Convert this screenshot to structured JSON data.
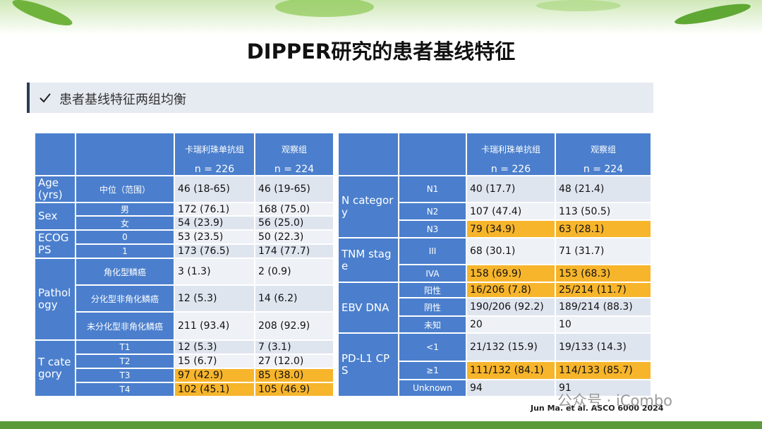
{
  "title": "DIPPER研究的患者基线特征",
  "subtitle": "患者基线特征两组均衡",
  "left_table": {
    "arms": [
      {
        "name": "卡瑞利珠单抗组",
        "n": "n = 226"
      },
      {
        "name": "观察组",
        "n": "n = 224"
      }
    ],
    "groups": [
      {
        "label": "Age (yrs)",
        "rows": [
          {
            "sub": "中位（范围）",
            "a": "46 (18-65)",
            "b": "46 (19-65)",
            "highlight": false
          }
        ]
      },
      {
        "label": "Sex",
        "rows": [
          {
            "sub": "男",
            "a": "172 (76.1)",
            "b": "168 (75.0)",
            "highlight": false
          },
          {
            "sub": "女",
            "a": "54 (23.9)",
            "b": "56 (25.0)",
            "highlight": false
          }
        ]
      },
      {
        "label": "ECOG PS",
        "rows": [
          {
            "sub": "0",
            "a": "53 (23.5)",
            "b": "50 (22.3)",
            "highlight": false
          },
          {
            "sub": "1",
            "a": "173 (76.5)",
            "b": "174 (77.7)",
            "highlight": false
          }
        ]
      },
      {
        "label": "Pathology",
        "rows": [
          {
            "sub": "角化型鳞癌",
            "a": "3 (1.3)",
            "b": "2 (0.9)",
            "highlight": false
          },
          {
            "sub": "分化型非角化鳞癌",
            "a": "12 (5.3)",
            "b": "14 (6.2)",
            "highlight": false
          },
          {
            "sub": "未分化型非角化鳞癌",
            "a": "211 (93.4)",
            "b": "208 (92.9)",
            "highlight": false
          }
        ]
      },
      {
        "label": "T category",
        "rows": [
          {
            "sub": "T1",
            "a": "12 (5.3)",
            "b": "7 (3.1)",
            "highlight": false
          },
          {
            "sub": "T2",
            "a": "15 (6.7)",
            "b": "27 (12.0)",
            "highlight": false
          },
          {
            "sub": "T3",
            "a": "97 (42.9)",
            "b": "85 (38.0)",
            "highlight": true
          },
          {
            "sub": "T4",
            "a": "102 (45.1)",
            "b": "105 (46.9)",
            "highlight": true
          }
        ]
      }
    ]
  },
  "right_table": {
    "arms": [
      {
        "name": "卡瑞利珠单抗组",
        "n": "n = 226"
      },
      {
        "name": "观察组",
        "n": "n = 224"
      }
    ],
    "groups": [
      {
        "label": "N category",
        "rows": [
          {
            "sub": "N1",
            "a": "40 (17.7)",
            "b": "48 (21.4)",
            "highlight": false
          },
          {
            "sub": "N2",
            "a": "107 (47.4)",
            "b": "113 (50.5)",
            "highlight": false
          },
          {
            "sub": "N3",
            "a": "79 (34.9)",
            "b": "63 (28.1)",
            "highlight": true
          }
        ]
      },
      {
        "label": "TNM stage",
        "rows": [
          {
            "sub": "III",
            "a": "68 (30.1)",
            "b": "71 (31.7)",
            "highlight": false
          },
          {
            "sub": "IVA",
            "a": "158 (69.9)",
            "b": "153 (68.3)",
            "highlight": true
          }
        ]
      },
      {
        "label": "EBV DNA",
        "rows": [
          {
            "sub": "阳性",
            "a": "16/206 (7.8)",
            "b": "25/214 (11.7)",
            "highlight": true
          },
          {
            "sub": "阴性",
            "a": "190/206 (92.2)",
            "b": "189/214 (88.3)",
            "highlight": false
          },
          {
            "sub": "未知",
            "a": "20",
            "b": "10",
            "highlight": false
          }
        ]
      },
      {
        "label": "PD-L1 CPS",
        "rows": [
          {
            "sub": "<1",
            "a": "21/132 (15.9)",
            "b": "19/133 (14.3)",
            "highlight": false
          },
          {
            "sub": "≥1",
            "a": "111/132 (84.1)",
            "b": "114/133 (85.7)",
            "highlight": true
          },
          {
            "sub": "Unknown",
            "a": "94",
            "b": "91",
            "highlight": false
          }
        ]
      }
    ]
  },
  "footnote": "Jun Ma. et al. ASCO 6000 2024",
  "watermark": "公众号 · iCombo"
}
